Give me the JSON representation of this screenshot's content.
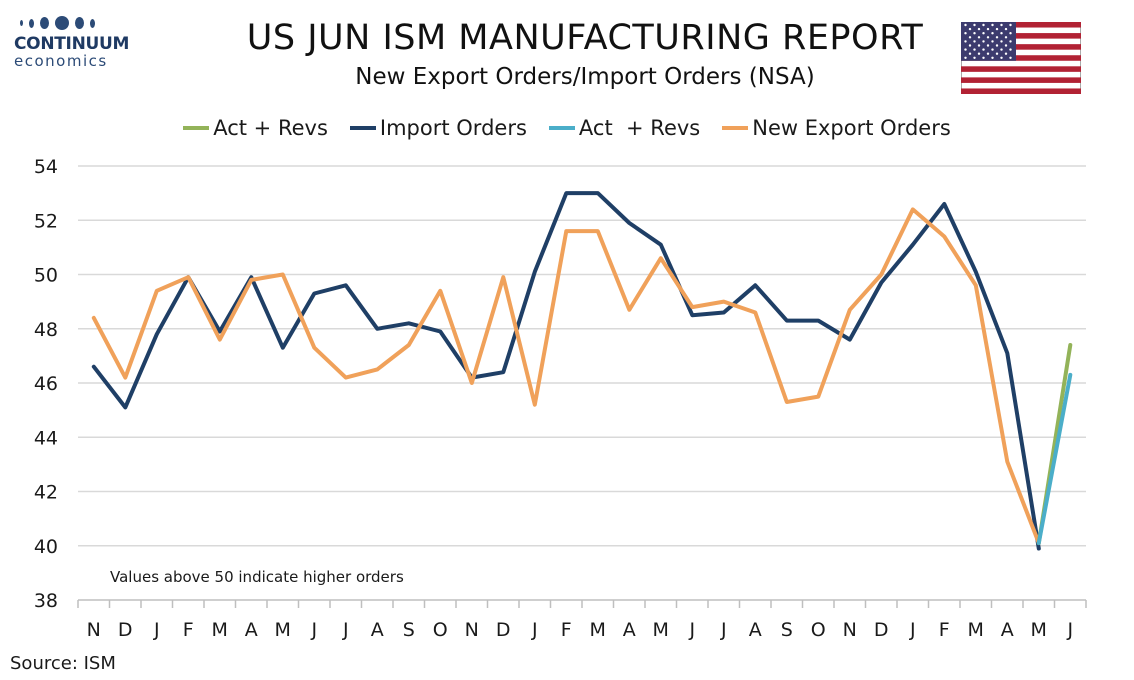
{
  "logo": {
    "name": "CONTINUUM",
    "sub": "economics"
  },
  "header": {
    "title": "US JUN ISM MANUFACTURING REPORT",
    "subtitle": "New Export Orders/Import Orders (NSA)"
  },
  "flag": {
    "icon": "us-flag-icon"
  },
  "note": "Values above 50 indicate higher orders",
  "source": "Source: ISM",
  "chart_data": {
    "type": "line",
    "categories": [
      "N",
      "D",
      "J",
      "F",
      "M",
      "A",
      "M",
      "J",
      "J",
      "A",
      "S",
      "O",
      "N",
      "D",
      "J",
      "F",
      "M",
      "A",
      "M",
      "J",
      "J",
      "A",
      "S",
      "O",
      "N",
      "D",
      "J",
      "F",
      "M",
      "A",
      "M",
      "J"
    ],
    "ylim": [
      38,
      54
    ],
    "yticks": [
      38,
      40,
      42,
      44,
      46,
      48,
      50,
      52,
      54
    ],
    "grid": true,
    "legend_position": "top",
    "series": [
      {
        "name": "Act + Revs",
        "color": "#93b359",
        "values": [
          null,
          null,
          null,
          null,
          null,
          null,
          null,
          null,
          null,
          null,
          null,
          null,
          null,
          null,
          null,
          null,
          null,
          null,
          null,
          null,
          null,
          null,
          null,
          null,
          null,
          null,
          null,
          null,
          null,
          null,
          40.1,
          47.4
        ]
      },
      {
        "name": "Import Orders",
        "color": "#1f3f66",
        "values": [
          46.6,
          45.1,
          47.8,
          49.9,
          47.9,
          49.9,
          47.3,
          49.3,
          49.6,
          48.0,
          48.2,
          47.9,
          46.2,
          46.4,
          50.1,
          53.0,
          53.0,
          51.9,
          51.1,
          48.5,
          48.6,
          49.6,
          48.3,
          48.3,
          47.6,
          49.7,
          51.1,
          52.6,
          50.1,
          47.1,
          39.9,
          null
        ]
      },
      {
        "name": "Act  + Revs",
        "color": "#4baec9",
        "values": [
          null,
          null,
          null,
          null,
          null,
          null,
          null,
          null,
          null,
          null,
          null,
          null,
          null,
          null,
          null,
          null,
          null,
          null,
          null,
          null,
          null,
          null,
          null,
          null,
          null,
          null,
          null,
          null,
          null,
          null,
          40.1,
          46.3
        ]
      },
      {
        "name": "New Export Orders",
        "color": "#f0a15a",
        "values": [
          48.4,
          46.2,
          49.4,
          49.9,
          47.6,
          49.8,
          50.0,
          47.3,
          46.2,
          46.5,
          47.4,
          49.4,
          46.0,
          49.9,
          45.2,
          51.6,
          51.6,
          48.7,
          50.6,
          48.8,
          49.0,
          48.6,
          45.3,
          45.5,
          48.7,
          50.0,
          52.4,
          51.4,
          49.6,
          43.1,
          40.1,
          null
        ]
      }
    ]
  }
}
